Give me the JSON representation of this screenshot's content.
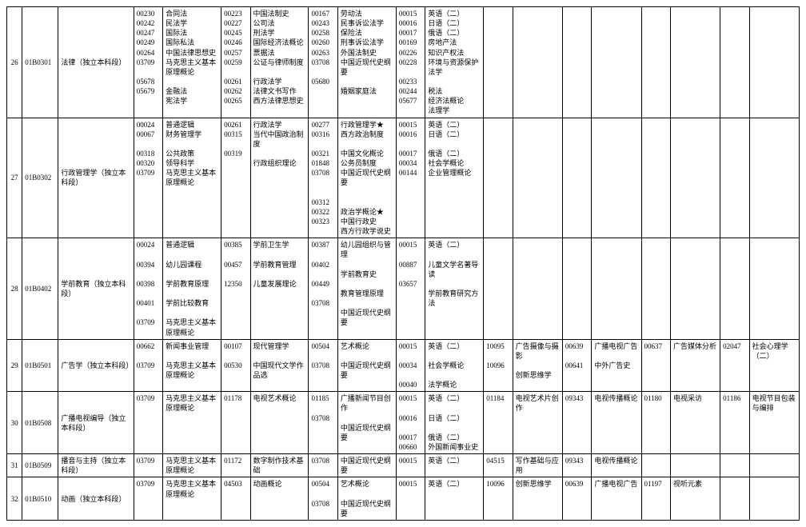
{
  "rows": [
    {
      "idx": "26",
      "code": "01B0301",
      "major": "法律（独立本科段）",
      "c1n": [
        "00230",
        "00242",
        "00247",
        "00249",
        "00264",
        "03709",
        "",
        "05678",
        "05679"
      ],
      "c1t": [
        "合同法",
        "民法学",
        "国际法",
        "国际私法",
        "中国法律思想史",
        "马克思主义基本原理概论",
        "",
        "金融法",
        "宪法学"
      ],
      "c2n": [
        "00223",
        "00227",
        "00245",
        "00246",
        "00257",
        "00259",
        "",
        "00261",
        "00262",
        "00265"
      ],
      "c2t": [
        "中国法制史",
        "公司法",
        "刑法学",
        "国际经济法概论",
        "票据法",
        "公证与律师制度",
        "",
        "行政法学",
        "法律文书写作",
        "西方法律思想史"
      ],
      "c3n": [
        "00167",
        "00243",
        "00258",
        "00260",
        "00263",
        "03708",
        "",
        "05680"
      ],
      "c3t": [
        "劳动法",
        "民事诉讼法学",
        "保险法",
        "刑事诉讼法学",
        "外国法制史",
        "中国近现代史纲要",
        "",
        "婚姻家庭法"
      ],
      "c4n": [
        "00015",
        "00016",
        "00017",
        "00169",
        "00226",
        "00228",
        "",
        "00233",
        "00244",
        "05677"
      ],
      "c4t": [
        "英语（二）",
        "日语（二）",
        "俄语（二）",
        "房地产法",
        "知识产权法",
        "环境与资源保护法学",
        "",
        "税法",
        "经济法概论",
        "法理学"
      ],
      "c5n": [],
      "c5t": [],
      "c6n": [],
      "c6t": [],
      "c7n": [],
      "c7t": [],
      "c8n": [],
      "c8t": []
    },
    {
      "idx": "27",
      "code": "01B0302",
      "major": "行政管理学（独立本科段）",
      "c1n": [
        "00024",
        "00067",
        "",
        "00318",
        "00320",
        "03709"
      ],
      "c1t": [
        "普通逻辑",
        "财务管理学",
        "",
        "公共政策",
        "领导科学",
        "马克思主义基本原理概论"
      ],
      "c2n": [
        "00261",
        "00315",
        "",
        "00319"
      ],
      "c2t": [
        "行政法学",
        "当代中国政治制度",
        "",
        "行政组织理论"
      ],
      "c3n": [
        "00277",
        "00316",
        "",
        "00321",
        "01848",
        "03708",
        "",
        "",
        "00312",
        "00322",
        "00323"
      ],
      "c3t": [
        "行政管理学★",
        "西方政治制度",
        "",
        "中国文化概论",
        "公务员制度",
        "中国近现代史纲要",
        "",
        "",
        "政治学概论★",
        "中国行政史",
        "西方行政学说史"
      ],
      "c4n": [
        "00015",
        "00016",
        "",
        "00017",
        "00034",
        "00144"
      ],
      "c4t": [
        "英语（二）",
        "日语（二）",
        "",
        "俄语（二）",
        "社会学概论",
        "企业管理概论"
      ],
      "c5n": [],
      "c5t": [],
      "c6n": [],
      "c6t": [],
      "c7n": [],
      "c7t": [],
      "c8n": [],
      "c8t": []
    },
    {
      "idx": "28",
      "code": "01B0402",
      "major": "学前教育（独立本科段）",
      "c1n": [
        "00024",
        "",
        "00394",
        "",
        "00398",
        "",
        "00401",
        "",
        "03709"
      ],
      "c1t": [
        "普通逻辑",
        "",
        "幼儿园课程",
        "",
        "学前教育原理",
        "",
        "学前比较教育",
        "",
        "马克思主义基本原理概论"
      ],
      "c2n": [
        "00385",
        "",
        "00457",
        "",
        "12350"
      ],
      "c2t": [
        "学前卫生学",
        "",
        "学前教育管理",
        "",
        "儿童发展理论"
      ],
      "c3n": [
        "00387",
        "",
        "00402",
        "",
        "00449",
        "",
        "03708"
      ],
      "c3t": [
        "幼儿园组织与管理",
        "",
        "学前教育史",
        "",
        "教育管理原理",
        "",
        "中国近现代史纲要"
      ],
      "c4n": [
        "00015",
        "",
        "00887",
        "",
        "03657"
      ],
      "c4t": [
        "英语（二）",
        "",
        "儿童文学名著导读",
        "",
        "学前教育研究方法"
      ],
      "c5n": [],
      "c5t": [],
      "c6n": [],
      "c6t": [],
      "c7n": [],
      "c7t": [],
      "c8n": [],
      "c8t": []
    },
    {
      "idx": "29",
      "code": "01B0501",
      "major": "广告学（独立本科段）",
      "c1n": [
        "00662",
        "",
        "03709"
      ],
      "c1t": [
        "新闻事业管理",
        "",
        "马克思主义基本原理概论"
      ],
      "c2n": [
        "00107",
        "",
        "00530"
      ],
      "c2t": [
        "现代管理学",
        "",
        "中国现代文学作品选"
      ],
      "c3n": [
        "00504",
        "",
        "03708"
      ],
      "c3t": [
        "艺术概论",
        "",
        "中国近现代史纲要"
      ],
      "c4n": [
        "00015",
        "",
        "00034",
        "",
        "00040"
      ],
      "c4t": [
        "英语（二）",
        "",
        "社会学概论",
        "",
        "法学概论"
      ],
      "c5n": [
        "10095",
        "",
        "10096"
      ],
      "c5t": [
        "广告摄像与摄影",
        "",
        "创新思维学"
      ],
      "c6n": [
        "00639",
        "",
        "00641"
      ],
      "c6t": [
        "广播电视广告",
        "",
        "中外广告史"
      ],
      "c7n": [
        "00637"
      ],
      "c7t": [
        "广告媒体分析"
      ],
      "c8n": [
        "02047"
      ],
      "c8t": [
        "社会心理学（二）"
      ]
    },
    {
      "idx": "30",
      "code": "01B0508",
      "major": "广播电视编导（独立本科段）",
      "c1n": [
        "03709"
      ],
      "c1t": [
        "马克思主义基本原理概论"
      ],
      "c2n": [
        "01178"
      ],
      "c2t": [
        "电视艺术概论"
      ],
      "c3n": [
        "01185",
        "",
        "03708"
      ],
      "c3t": [
        "广播新闻节目创作",
        "",
        "中国近现代史纲要"
      ],
      "c4n": [
        "00015",
        "",
        "00016",
        "",
        "00017",
        "00660"
      ],
      "c4t": [
        "英语（二）",
        "",
        "日语（二）",
        "",
        "俄语（二）",
        "外国新闻事业史"
      ],
      "c5n": [
        "01184"
      ],
      "c5t": [
        "电视艺术片创作"
      ],
      "c6n": [
        "09343"
      ],
      "c6t": [
        "电视传播概论"
      ],
      "c7n": [
        "01180"
      ],
      "c7t": [
        "电视采访"
      ],
      "c8n": [
        "01186"
      ],
      "c8t": [
        "电视节目包装与编排"
      ]
    },
    {
      "idx": "31",
      "code": "01B0509",
      "major": "播音与主持（独立本科段）",
      "c1n": [
        "03709"
      ],
      "c1t": [
        "马克思主义基本原理概论"
      ],
      "c2n": [
        "01172"
      ],
      "c2t": [
        "数字制作技术基础"
      ],
      "c3n": [
        "03708"
      ],
      "c3t": [
        "中国近现代史纲要"
      ],
      "c4n": [
        "00015"
      ],
      "c4t": [
        "英语（二）"
      ],
      "c5n": [
        "04515"
      ],
      "c5t": [
        "写作基础与应用"
      ],
      "c6n": [
        "09343"
      ],
      "c6t": [
        "电视传播概论"
      ],
      "c7n": [],
      "c7t": [],
      "c8n": [],
      "c8t": []
    },
    {
      "idx": "32",
      "code": "01B0510",
      "major": "动画（独立本科段）",
      "c1n": [
        "03709"
      ],
      "c1t": [
        "马克思主义基本原理概论"
      ],
      "c2n": [
        "04503"
      ],
      "c2t": [
        "动画概论"
      ],
      "c3n": [
        "00504",
        "",
        "03708"
      ],
      "c3t": [
        "艺术概论",
        "",
        "中国近现代史纲要"
      ],
      "c4n": [
        "00015"
      ],
      "c4t": [
        "英语（二）"
      ],
      "c5n": [
        "10096"
      ],
      "c5t": [
        "创新思维学"
      ],
      "c6n": [
        "00639"
      ],
      "c6t": [
        "广播电视广告"
      ],
      "c7n": [
        "01197"
      ],
      "c7t": [
        "视听元素"
      ],
      "c8n": [],
      "c8t": []
    }
  ]
}
